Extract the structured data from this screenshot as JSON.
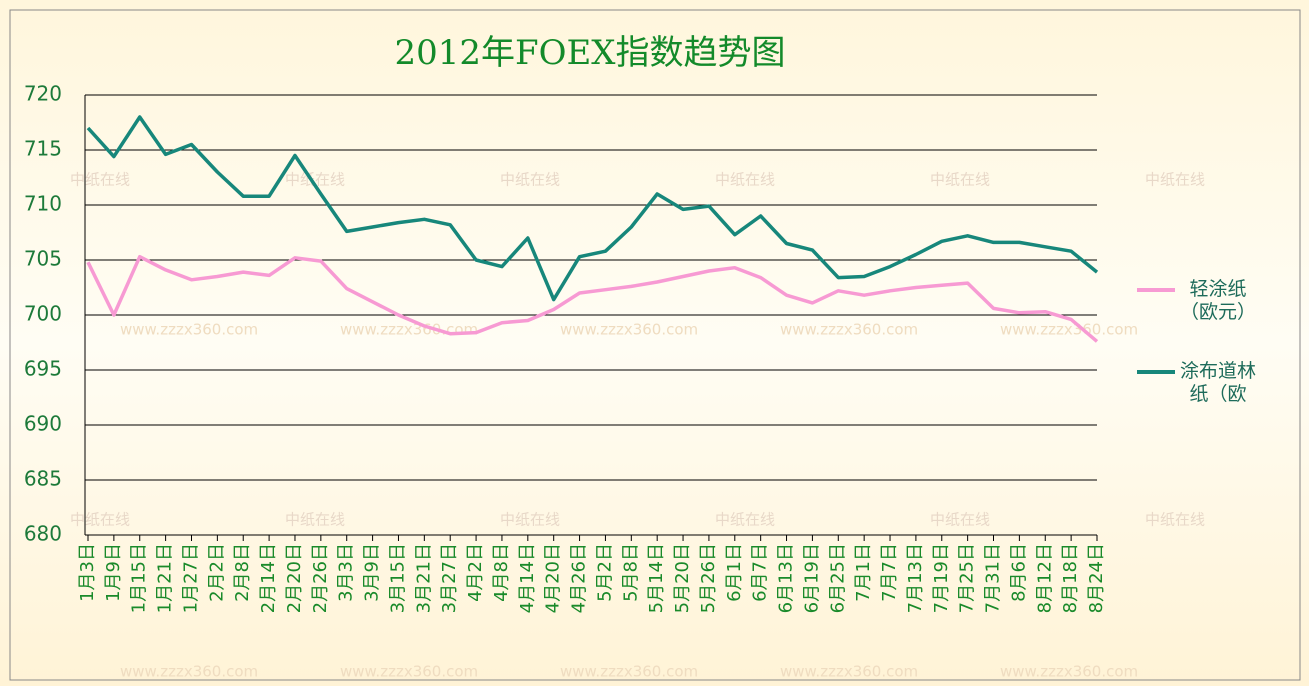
{
  "chart_data": {
    "type": "line",
    "title": "2012年FOEX指数趋势图",
    "categories": [
      "1月3日",
      "1月9日",
      "1月15日",
      "1月21日",
      "1月27日",
      "2月2日",
      "2月8日",
      "2月14日",
      "2月20日",
      "2月26日",
      "3月3日",
      "3月9日",
      "3月15日",
      "3月21日",
      "3月27日",
      "4月2日",
      "4月8日",
      "4月14日",
      "4月20日",
      "4月26日",
      "5月2日",
      "5月8日",
      "5月14日",
      "5月20日",
      "5月26日",
      "6月1日",
      "6月7日",
      "6月13日",
      "6月19日",
      "6月25日",
      "7月1日",
      "7月7日",
      "7月13日",
      "7月19日",
      "7月25日",
      "7月31日",
      "8月6日",
      "8月12日",
      "8月18日",
      "8月24日"
    ],
    "series": [
      {
        "name": "轻涂纸（欧元）",
        "color": "#f79ad3",
        "values": [
          704.8,
          700,
          705.3,
          704.1,
          703.2,
          703.5,
          703.9,
          703.6,
          705.2,
          704.9,
          702.4,
          701.2,
          700,
          699,
          698.3,
          698.4,
          699.3,
          699.5,
          700.5,
          702,
          702.3,
          702.6,
          703,
          703.5,
          704,
          704.3,
          703.4,
          701.8,
          701.1,
          702.2,
          701.8,
          702.2,
          702.5,
          702.7,
          702.9,
          700.6,
          700.2,
          700.3,
          699.6,
          697.6
        ]
      },
      {
        "name": "涂布道林纸（欧",
        "color": "#17877b",
        "values": [
          717,
          714.4,
          718,
          714.6,
          715.5,
          713,
          710.8,
          710.8,
          714.5,
          711,
          707.6,
          708,
          708.4,
          708.7,
          708.2,
          705,
          704.4,
          707,
          701.4,
          705.3,
          705.8,
          708,
          711,
          709.6,
          709.9,
          707.3,
          709,
          706.5,
          705.9,
          703.4,
          703.5,
          704.4,
          705.5,
          706.7,
          707.2,
          706.6,
          706.6,
          706.2,
          705.8,
          703.9
        ]
      }
    ],
    "ylim": [
      680,
      720
    ],
    "yticks": [
      680,
      685,
      690,
      695,
      700,
      705,
      710,
      715,
      720
    ],
    "grid": true,
    "legend": "right",
    "watermarks": [
      "中纸在线",
      "www.zzzx360.com"
    ]
  }
}
